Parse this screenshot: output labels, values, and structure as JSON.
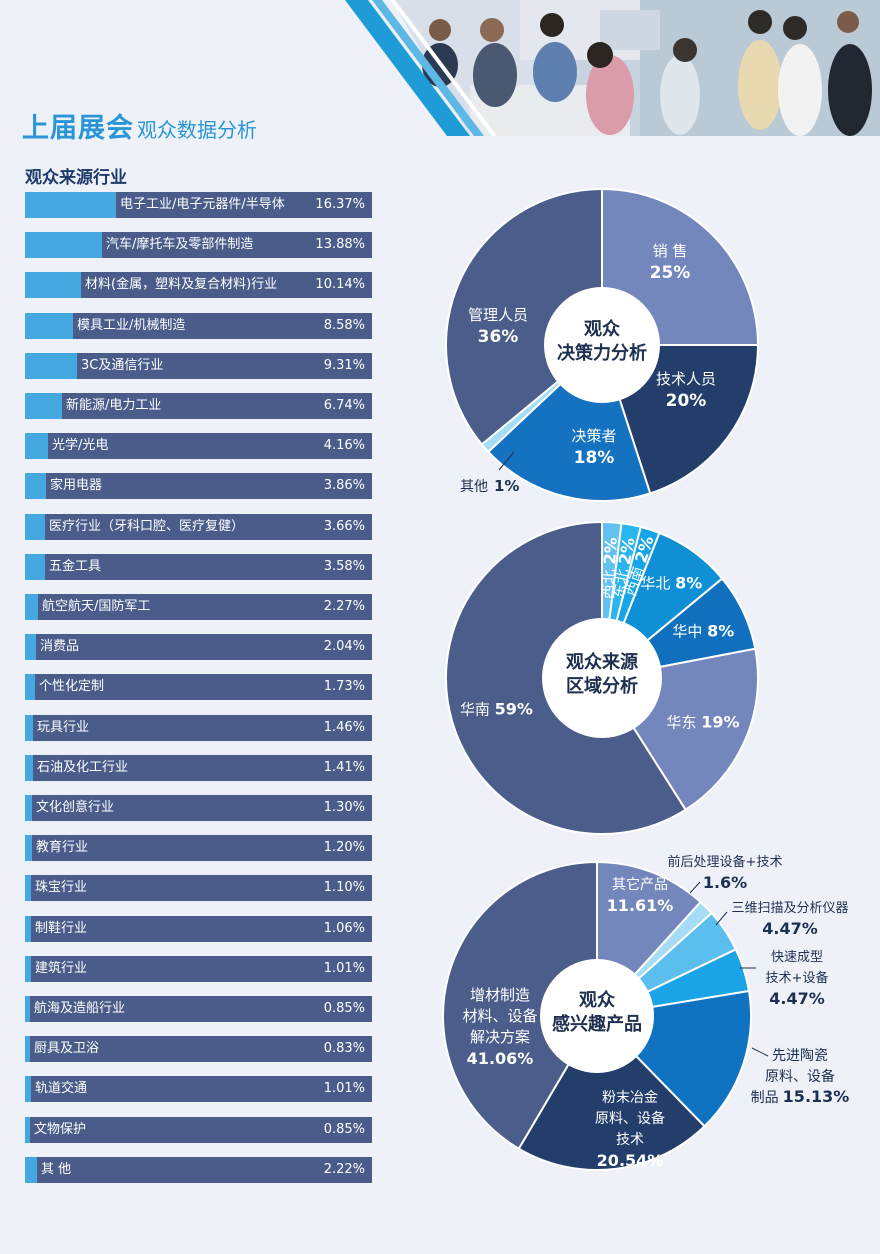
{
  "header": {
    "title": "上届展会",
    "subtitle": "观众数据分析"
  },
  "colors": {
    "bar_bg": "#4a5d8a",
    "bar_fill": "#46a8e0",
    "title": "#2a95d6",
    "heading": "#1e3a6d"
  },
  "industry_section": {
    "heading": "观众来源行业"
  },
  "chart_data": [
    {
      "type": "bar",
      "title": "观众来源行业",
      "categories": [
        "电子工业/电子元器件/半导体",
        "汽车/摩托车及零部件制造",
        "材料(金属，塑料及复合材料)行业",
        "模具工业/机械制造",
        "3C及通信行业",
        "新能源/电力工业",
        "光学/光电",
        "家用电器",
        "医疗行业（牙科口腔、医疗复健）",
        "五金工具",
        "航空航天/国防军工",
        "消费品",
        "个性化定制",
        "玩具行业",
        "石油及化工行业",
        "文化创意行业",
        "教育行业",
        "珠宝行业",
        "制鞋行业",
        "建筑行业",
        "航海及造船行业",
        "厨具及卫浴",
        "轨道交通",
        "文物保护",
        "其 他"
      ],
      "values": [
        16.37,
        13.88,
        10.14,
        8.58,
        9.31,
        6.74,
        4.16,
        3.86,
        3.66,
        3.58,
        2.27,
        2.04,
        1.73,
        1.46,
        1.41,
        1.3,
        1.2,
        1.1,
        1.06,
        1.01,
        0.85,
        0.83,
        1.01,
        0.85,
        2.22
      ],
      "value_labels": [
        "16.37%",
        "13.88%",
        "10.14%",
        "8.58%",
        "9.31%",
        "6.74%",
        "4.16%",
        "3.86%",
        "3.66%",
        "3.58%",
        "2.27%",
        "2.04%",
        "1.73%",
        "1.46%",
        "1.41%",
        "1.30%",
        "1.20%",
        "1.10%",
        "1.06%",
        "1.01%",
        "0.85%",
        "0.83%",
        "1.01%",
        "0.85%",
        "2.22%"
      ]
    },
    {
      "type": "pie",
      "title_lines": [
        "观众",
        "决策力分析"
      ],
      "slices": [
        {
          "label": "销 售",
          "value_label": "25%",
          "value": 25,
          "color": "#7487bc"
        },
        {
          "label": "技术人员",
          "value_label": "20%",
          "value": 20,
          "color": "#233e6b"
        },
        {
          "label": "决策者",
          "value_label": "18%",
          "value": 18,
          "color": "#1472c0"
        },
        {
          "label": "其他",
          "value_label": "1%",
          "value": 1,
          "color": "#a6dcf6"
        },
        {
          "label": "管理人员",
          "value_label": "36%",
          "value": 36,
          "color": "#4b5d8a"
        }
      ]
    },
    {
      "type": "pie",
      "title_lines": [
        "观众来源",
        "区域分析"
      ],
      "slices": [
        {
          "label": "西北",
          "value_label": "2%",
          "value": 2,
          "color": "#62c1ee"
        },
        {
          "label": "东北",
          "value_label": "2%",
          "value": 2,
          "color": "#2ab5ee"
        },
        {
          "label": "西南",
          "value_label": "2%",
          "value": 2,
          "color": "#16a5e6"
        },
        {
          "label": "华北",
          "value_label": "8%",
          "value": 8,
          "color": "#0e8fd6"
        },
        {
          "label": "华中",
          "value_label": "8%",
          "value": 8,
          "color": "#1070bd"
        },
        {
          "label": "华东",
          "value_label": "19%",
          "value": 19,
          "color": "#7487bc"
        },
        {
          "label": "华南",
          "value_label": "59%",
          "value": 59,
          "color": "#4b5d8a"
        }
      ]
    },
    {
      "type": "pie",
      "title_lines": [
        "观众",
        "感兴趣产品"
      ],
      "slices": [
        {
          "label_lines": [
            "其它产品"
          ],
          "value_label": "11.61%",
          "value": 11.61,
          "color": "#7487bc"
        },
        {
          "label_lines": [
            "前后处理设备+技术"
          ],
          "value_label": "1.6%",
          "value": 1.6,
          "color": "#a6dcf6"
        },
        {
          "label_lines": [
            "三维扫描及分析仪器"
          ],
          "value_label": "4.47%",
          "value": 4.47,
          "color": "#5bbeee"
        },
        {
          "label_lines": [
            "快速成型",
            "技术+设备"
          ],
          "value_label": "4.47%",
          "value": 4.47,
          "color": "#1aa3e6"
        },
        {
          "label_lines": [
            "先进陶瓷",
            "原料、设备",
            "制品"
          ],
          "value_label": "15.13%",
          "value": 15.13,
          "color": "#0f73c2"
        },
        {
          "label_lines": [
            "粉末冶金",
            "原料、设备",
            "技术"
          ],
          "value_label": "20.54%",
          "value": 20.54,
          "color": "#233e6b"
        },
        {
          "label_lines": [
            "增材制造",
            "材料、设备",
            "解决方案"
          ],
          "value_label": "41.06%",
          "value": 41.06,
          "color": "#4b5d8a"
        }
      ]
    }
  ]
}
